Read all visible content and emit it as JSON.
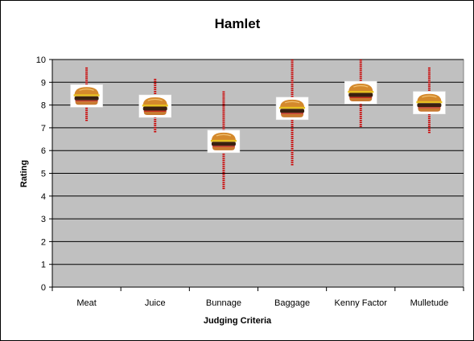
{
  "chart_data": {
    "type": "scatter",
    "title": "Hamlet",
    "xlabel": "Judging Criteria",
    "ylabel": "Rating",
    "ylim": [
      0,
      10
    ],
    "yticks": [
      0,
      1,
      2,
      3,
      4,
      5,
      6,
      7,
      8,
      9,
      10
    ],
    "grid": true,
    "legend": "none",
    "categories": [
      "Meat",
      "Juice",
      "Bunnage",
      "Baggage",
      "Kenny Factor",
      "Mulletude"
    ],
    "values": [
      8.4,
      7.95,
      6.4,
      7.85,
      8.55,
      8.1
    ],
    "error_low": [
      7.3,
      6.8,
      4.3,
      5.35,
      7.0,
      6.75
    ],
    "error_high": [
      9.65,
      9.15,
      8.6,
      10.0,
      10.0,
      9.65
    ],
    "marker": "hamburger-icon",
    "colors": {
      "plot_bg": "#c0c0c0",
      "error_bar": "#cc0000",
      "grid": "#000000"
    }
  }
}
